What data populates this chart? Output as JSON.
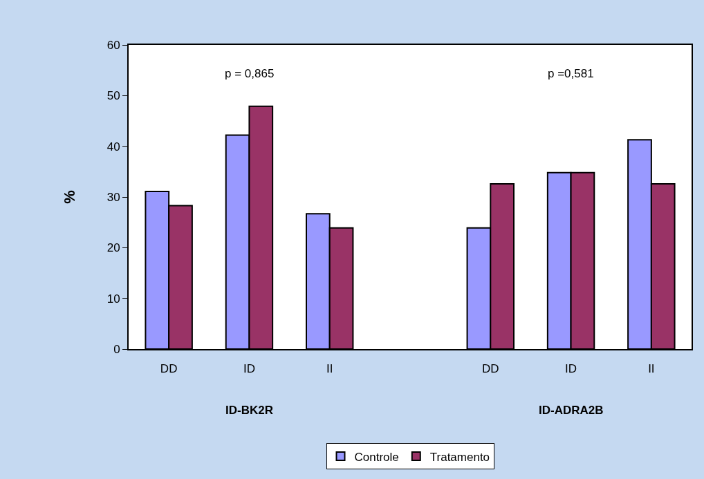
{
  "chart_data": {
    "type": "bar",
    "ylabel": "%",
    "categories": [
      "DD",
      "ID",
      "II",
      null,
      "DD",
      "ID",
      "II"
    ],
    "series": [
      {
        "name": "Controle",
        "color": "#9999ff",
        "values": [
          31.1,
          42.2,
          26.7,
          null,
          23.9,
          34.8,
          41.3
        ]
      },
      {
        "name": "Tratamento",
        "color": "#993366",
        "values": [
          28.3,
          47.9,
          23.9,
          null,
          32.6,
          34.8,
          32.6
        ]
      }
    ],
    "ylim": [
      0,
      60
    ],
    "yticks": [
      0,
      10,
      20,
      30,
      40,
      50,
      60
    ],
    "grid": false,
    "legend": "bottom",
    "annotations": [
      "p = 0,865",
      "p =0,581",
      "ID-BK2R",
      "ID-ADRA2B"
    ]
  }
}
